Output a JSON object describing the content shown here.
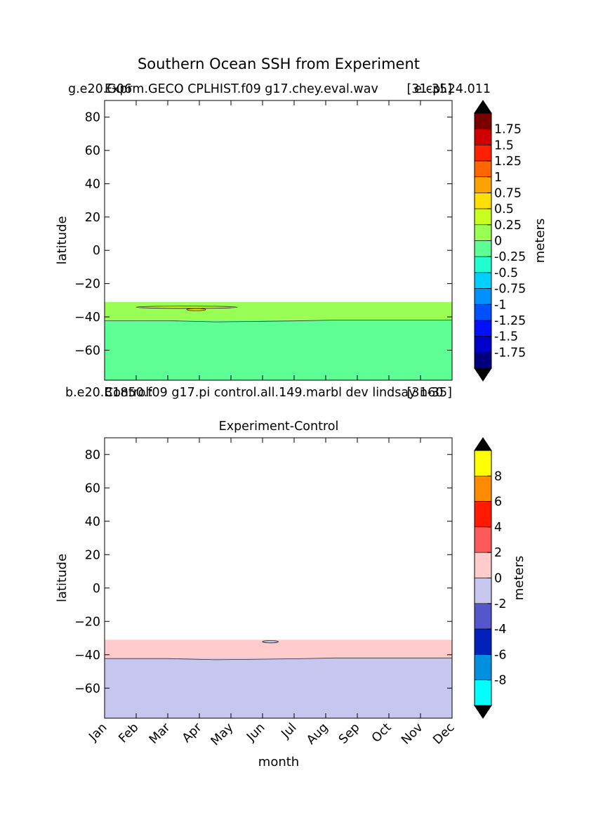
{
  "figure": {
    "suptitle": "Southern Ocean SSH from Experiment",
    "top_left_label": "g.e20.G06",
    "top_left_label_overlap": "Exprm.GECO CPLHIST.f09 g17.chey.eval.wav",
    "top_right_label": "[31-35]",
    "top_right_label_overlap": "e.cpl.24.011",
    "mid_left_label": "b.e20.B1850.f09 g17.pi control.all.149.marbl dev lindsay n60",
    "mid_left_label_overlap": "Control:",
    "mid_right_label": "[31-35]",
    "bottom_title": "Experiment-Control",
    "xlabel": "month"
  },
  "chart_data": [
    {
      "type": "heatmap",
      "panel": "experiment",
      "ylabel": "latitude",
      "ylim": [
        -78,
        90
      ],
      "yticks": [
        80,
        60,
        40,
        20,
        0,
        -20,
        -40,
        -60
      ],
      "ytick_labels": [
        "80",
        "60",
        "40",
        "20",
        "0",
        "−20",
        "−40",
        "−60"
      ],
      "x_months": [
        1,
        2,
        3,
        4,
        5,
        6,
        7,
        8,
        9,
        10,
        11,
        12
      ],
      "data_top_latitude": -31,
      "regions": [
        {
          "label": "0 to 0.25 m",
          "color": "#99ff55",
          "lat_from": -42,
          "lat_to": -31
        },
        {
          "label": "-0.25 to 0 m",
          "color": "#5eff95",
          "lat_from": -78,
          "lat_to": -42
        }
      ],
      "boundary_0_line": [
        {
          "month": 1,
          "lat": -42.3
        },
        {
          "month": 3,
          "lat": -42.3
        },
        {
          "month": 4.5,
          "lat": -43.0
        },
        {
          "month": 5.5,
          "lat": -42.8
        },
        {
          "month": 7,
          "lat": -42.4
        },
        {
          "month": 8.3,
          "lat": -41.9
        },
        {
          "month": 12,
          "lat": -41.9
        }
      ],
      "small_contours": [
        {
          "level": "0.25-0.5 m",
          "color": "#c8ff20",
          "month_from": 2.0,
          "month_to": 5.2,
          "lat": -34.2
        },
        {
          "level": "0.5-0.75 m",
          "color": "#ffe000",
          "month_from": 3.6,
          "month_to": 4.2,
          "lat": -35.6
        }
      ],
      "colorbar": {
        "label": "meters",
        "extend": "both",
        "levels": [
          "1.75",
          "1.5",
          "1.25",
          "1",
          "0.75",
          "0.5",
          "0.25",
          "0",
          "-0.25",
          "-0.5",
          "-0.75",
          "-1",
          "-1.25",
          "-1.5",
          "-1.75"
        ],
        "colors": [
          "#7a0000",
          "#d10000",
          "#ff2000",
          "#ff6600",
          "#ffa200",
          "#ffe000",
          "#c8ff20",
          "#99ff55",
          "#5eff95",
          "#20ffd0",
          "#00d0ff",
          "#0090ff",
          "#0050ff",
          "#0010ff",
          "#0000c8",
          "#00007f"
        ],
        "extend_colors": [
          "#000000",
          "#000000"
        ]
      }
    },
    {
      "type": "heatmap",
      "panel": "difference",
      "title": "Experiment-Control",
      "ylabel": "latitude",
      "xlabel": "month",
      "ylim": [
        -78,
        90
      ],
      "yticks": [
        80,
        60,
        40,
        20,
        0,
        -20,
        -40,
        -60
      ],
      "ytick_labels": [
        "80",
        "60",
        "40",
        "20",
        "0",
        "−20",
        "−40",
        "−60"
      ],
      "categories": [
        "Jan",
        "Feb",
        "Mar",
        "Apr",
        "May",
        "Jun",
        "Jul",
        "Aug",
        "Sep",
        "Oct",
        "Nov",
        "Dec"
      ],
      "data_top_latitude": -31,
      "regions": [
        {
          "label": "0 to 2 m",
          "color": "#ffcbcb",
          "lat_from": -42,
          "lat_to": -31
        },
        {
          "label": "-2 to 0 m",
          "color": "#c6c6ee",
          "lat_from": -78,
          "lat_to": -42
        }
      ],
      "boundary_0_line": [
        {
          "month": 1,
          "lat": -42.3
        },
        {
          "month": 3,
          "lat": -42.3
        },
        {
          "month": 4.5,
          "lat": -43.0
        },
        {
          "month": 5.5,
          "lat": -42.8
        },
        {
          "month": 7,
          "lat": -42.4
        },
        {
          "month": 8.3,
          "lat": -41.9
        },
        {
          "month": 12,
          "lat": -41.9
        }
      ],
      "small_contours": [
        {
          "level": "0 m",
          "color": "#c6c6ee",
          "month_from": 6.0,
          "month_to": 6.5,
          "lat": -32.2
        }
      ],
      "colorbar": {
        "label": "meters",
        "extend": "both",
        "levels": [
          "8",
          "6",
          "4",
          "2",
          "0",
          "-2",
          "-4",
          "-6",
          "-8"
        ],
        "colors": [
          "#ffff00",
          "#ff8c00",
          "#ff1a00",
          "#ff5a5a",
          "#ffcbcb",
          "#c6c6ee",
          "#5555cc",
          "#0022bb",
          "#0090dd",
          "#00ffff"
        ],
        "extend_colors": [
          "#000000",
          "#000000"
        ]
      }
    }
  ]
}
